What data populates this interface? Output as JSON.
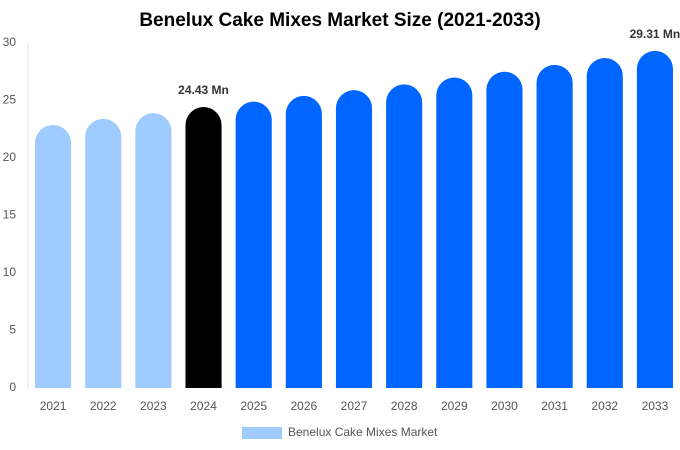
{
  "chart_data": {
    "type": "bar",
    "title": "Benelux Cake Mixes Market Size (2021-2033)",
    "categories": [
      "2021",
      "2022",
      "2023",
      "2024",
      "2025",
      "2026",
      "2027",
      "2028",
      "2029",
      "2030",
      "2031",
      "2032",
      "2033"
    ],
    "series": [
      {
        "name": "Benelux Cake Mixes Market",
        "color": "#a0cbff",
        "colors": [
          "#a0cbff",
          "#a0cbff",
          "#a0cbff",
          "#000000",
          "#0066ff",
          "#0066ff",
          "#0066ff",
          "#0066ff",
          "#0066ff",
          "#0066ff",
          "#0066ff",
          "#0066ff",
          "#0066ff"
        ],
        "values": [
          22.87,
          23.4,
          23.9,
          24.43,
          24.9,
          25.4,
          25.9,
          26.4,
          27.0,
          27.5,
          28.1,
          28.7,
          29.31
        ],
        "value_labels": [
          null,
          null,
          null,
          "24.43 Mn",
          null,
          null,
          null,
          null,
          null,
          null,
          null,
          null,
          "29.31 Mn"
        ]
      }
    ],
    "ylim": [
      0,
      30
    ],
    "yticks": [
      0,
      5,
      10,
      15,
      20,
      25,
      30
    ],
    "grid": false,
    "legend": "bottom"
  }
}
